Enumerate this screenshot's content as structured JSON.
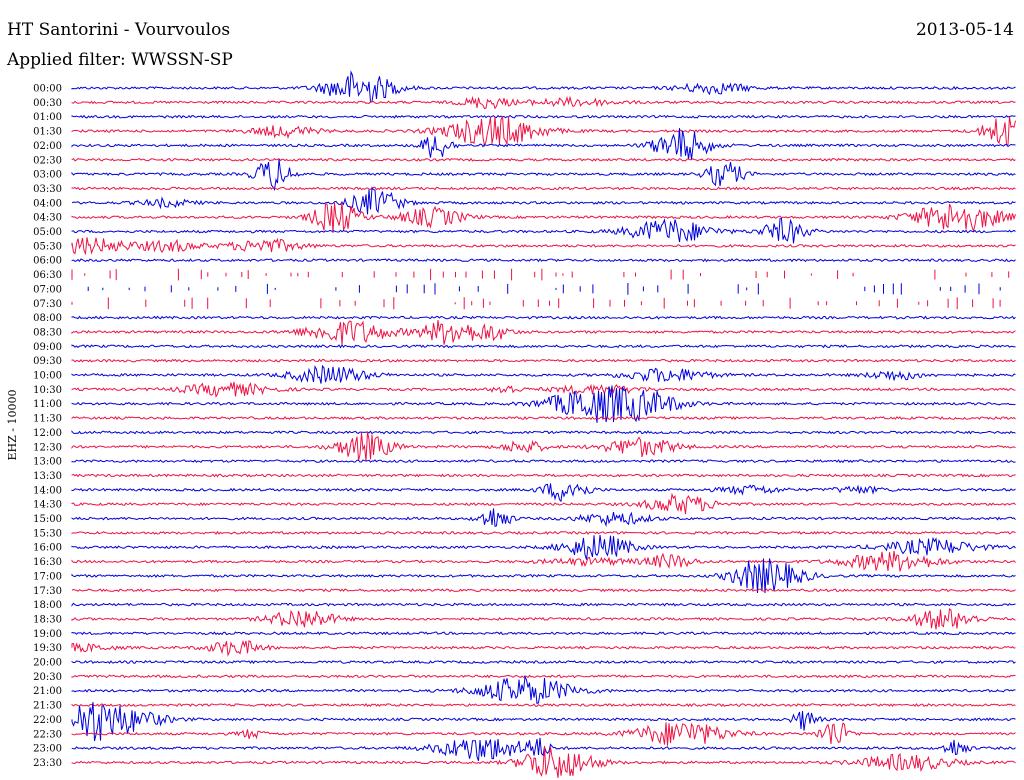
{
  "header": {
    "title": "HT Santorini - Vourvoulos",
    "date": "2013-05-14",
    "filter_label": "Applied filter:",
    "filter_value": "WWSSN-SP"
  },
  "chart_data": {
    "type": "line",
    "ylabel": "EHZ - 10000",
    "row_labels": [
      "00:00",
      "00:30",
      "01:00",
      "01:30",
      "02:00",
      "02:30",
      "03:00",
      "03:30",
      "04:00",
      "04:30",
      "05:00",
      "05:30",
      "06:00",
      "06:30",
      "07:00",
      "07:30",
      "08:00",
      "08:30",
      "09:00",
      "09:30",
      "10:00",
      "10:30",
      "11:00",
      "11:30",
      "12:00",
      "12:30",
      "13:00",
      "13:30",
      "14:00",
      "14:30",
      "15:00",
      "15:30",
      "16:00",
      "16:30",
      "17:00",
      "17:30",
      "18:00",
      "18:30",
      "19:00",
      "19:30",
      "20:00",
      "20:30",
      "21:00",
      "21:30",
      "22:00",
      "22:30",
      "23:00",
      "23:30"
    ],
    "series_colors": [
      "#0000dd",
      "#ee1144"
    ],
    "row_minutes": 30,
    "gap_rows": [
      "06:30",
      "07:00",
      "07:30"
    ]
  }
}
